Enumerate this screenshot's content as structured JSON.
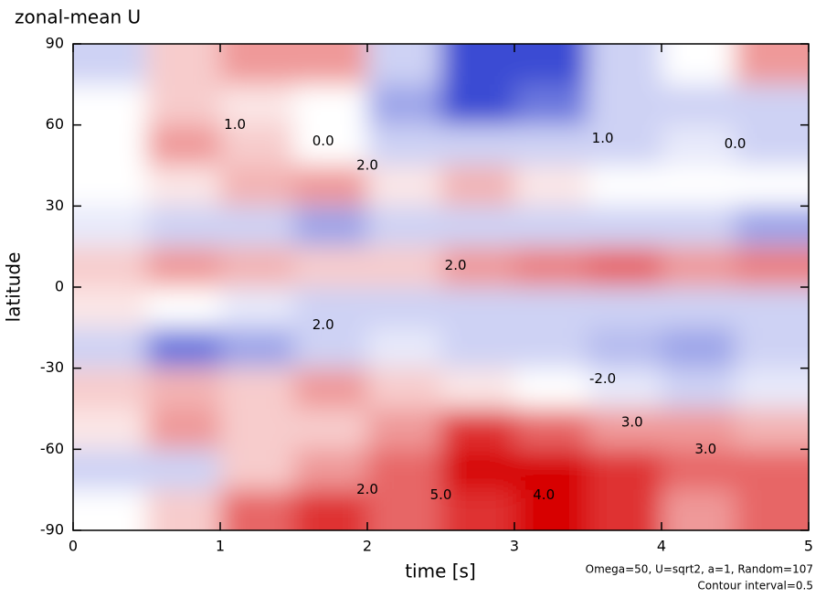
{
  "chart_data": {
    "type": "heatmap",
    "title": "zonal-mean U",
    "x_label": "time [s]",
    "y_label": "latitude",
    "notes": [
      "Omega=50, U=sqrt2, a=1, Random=107",
      "Contour interval=0.5"
    ],
    "x": [
      0.25,
      0.75,
      1.25,
      1.75,
      2.25,
      2.75,
      3.25,
      3.75,
      4.25,
      4.75
    ],
    "y": [
      82.5,
      67.5,
      52.5,
      37.5,
      22.5,
      7.5,
      -7.5,
      -22.5,
      -37.5,
      -52.5,
      -67.5,
      -82.5
    ],
    "z": [
      [
        -1,
        1,
        2,
        2,
        -1,
        -4,
        -4,
        -1,
        0,
        2
      ],
      [
        0,
        1,
        0.5,
        0,
        -2,
        -4,
        -3,
        -1,
        -1,
        -1
      ],
      [
        0,
        2,
        1,
        0,
        -1,
        -1,
        -1,
        -1,
        -0.5,
        -1
      ],
      [
        0,
        0.5,
        1.5,
        2,
        0.5,
        1.5,
        0.5,
        0,
        0,
        0
      ],
      [
        -0.5,
        -1,
        -1,
        -2,
        -1,
        -1,
        -1,
        -1,
        -1,
        -2
      ],
      [
        1,
        2,
        1.5,
        1,
        1,
        2,
        2.5,
        3,
        2,
        2.5
      ],
      [
        0.5,
        0,
        -0.5,
        -1,
        -1,
        -1,
        -1,
        -1,
        -1,
        -1
      ],
      [
        -1,
        -3,
        -2,
        -1,
        -0.5,
        -1,
        -1,
        -1.5,
        -2,
        -1
      ],
      [
        1,
        1.5,
        1,
        2,
        1,
        0.5,
        0,
        -0.5,
        -1,
        -0.5
      ],
      [
        0.5,
        2,
        1,
        1,
        2,
        4,
        3,
        2,
        2,
        1.5
      ],
      [
        -1,
        -1,
        1,
        2,
        3,
        5,
        5,
        4,
        3,
        3
      ],
      [
        0,
        1,
        3,
        4,
        3,
        4,
        5,
        4,
        2,
        3
      ]
    ],
    "zlim": [
      -5,
      5
    ],
    "contour_labels": {
      "x": [
        1.1,
        2.0,
        1.7,
        3.6,
        4.5,
        2.6,
        1.7,
        3.6,
        3.8,
        2.5,
        4.3,
        2.0,
        3.2
      ],
      "y": [
        60,
        45,
        54,
        55,
        53,
        8,
        -14,
        -34,
        -50,
        -77,
        -60,
        -75,
        -77
      ],
      "values": [
        1,
        2,
        0,
        1,
        0,
        2,
        2,
        -2,
        3,
        5,
        3,
        2,
        4
      ],
      "value_labels": [
        "1.0",
        "2.0",
        "0.0",
        "1.0",
        "0.0",
        "2.0",
        "2.0",
        "-2.0",
        "3.0",
        "5.0",
        "3.0",
        "2.0",
        "4.0"
      ]
    },
    "xlim": [
      0,
      5
    ],
    "ylim": [
      -90,
      90
    ],
    "xticks": [
      0,
      1,
      2,
      3,
      4,
      5
    ],
    "yticks": [
      -90,
      -60,
      -30,
      0,
      30,
      60,
      90
    ]
  }
}
